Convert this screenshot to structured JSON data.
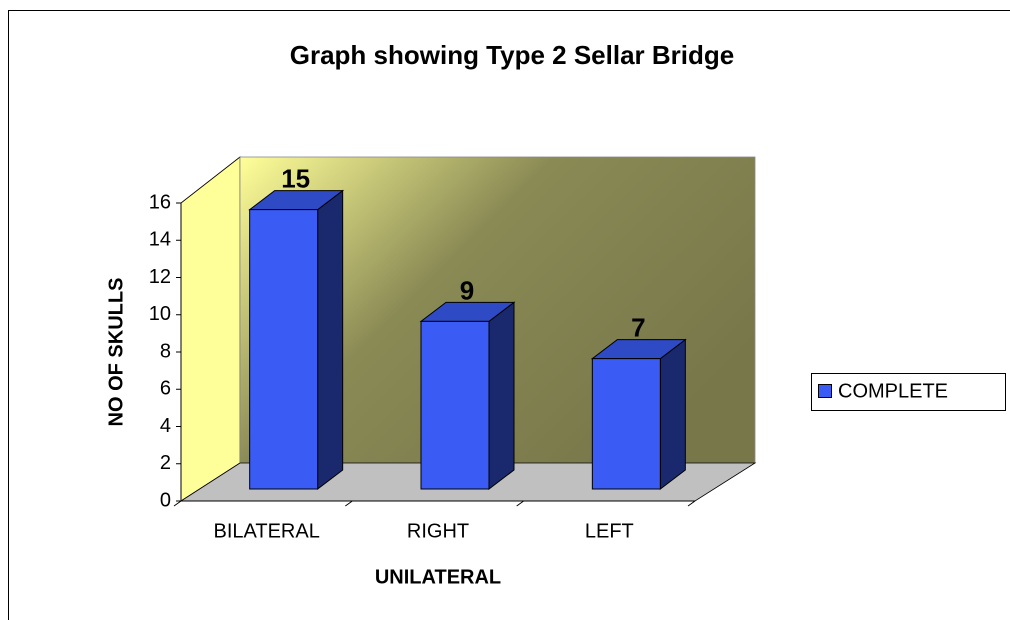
{
  "chart_data": {
    "type": "bar",
    "title": "Graph showing Type 2 Sellar Bridge",
    "categories": [
      "BILATERAL",
      "RIGHT",
      "LEFT"
    ],
    "series": [
      {
        "name": "COMPLETE",
        "color": "#3a5cf5",
        "values": [
          15,
          9,
          7
        ]
      }
    ],
    "x_label": "UNILATERAL",
    "y_label": "NO OF SKULLS",
    "ylim": [
      0,
      16
    ],
    "yticks": [
      0,
      2,
      4,
      6,
      8,
      10,
      12,
      14,
      16
    ],
    "grid": false,
    "legend": "right"
  }
}
